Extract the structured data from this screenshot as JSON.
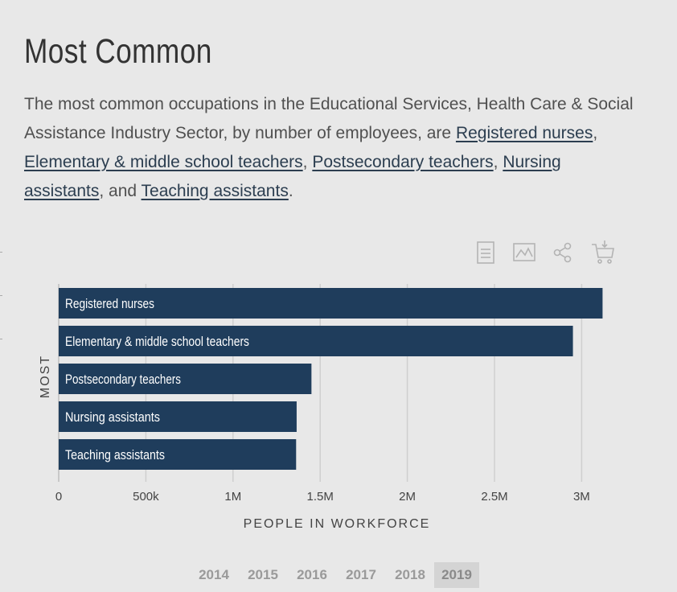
{
  "header": {
    "title": "Most Common",
    "desc_prefix": "The most common occupations in the Educational Services, Health Care & Social Assistance Industry Sector, by number of employees, are ",
    "links": [
      "Registered nurses",
      "Elementary & middle school teachers",
      "Postsecondary teachers",
      "Nursing assistants",
      "Teaching assistants"
    ],
    "sep1": ", ",
    "sep2": ", ",
    "sep3": ", ",
    "sep4": ", and ",
    "desc_suffix": "."
  },
  "toolbar": {
    "icons": [
      "document-icon",
      "image-icon",
      "share-icon",
      "cart-download-icon"
    ]
  },
  "chart_data": {
    "type": "bar",
    "orientation": "horizontal",
    "categories": [
      "Registered nurses",
      "Elementary & middle school teachers",
      "Postsecondary teachers",
      "Nursing assistants",
      "Teaching assistants"
    ],
    "values": [
      3120000,
      2950000,
      1450000,
      1365000,
      1362000
    ],
    "xlabel": "PEOPLE IN WORKFORCE",
    "ylabel": "MOST",
    "xlim": [
      0,
      3250000
    ],
    "xticks": [
      0,
      500000,
      1000000,
      1500000,
      2000000,
      2500000,
      3000000
    ],
    "xtick_labels": [
      "0",
      "500k",
      "1M",
      "1.5M",
      "2M",
      "2.5M",
      "3M"
    ],
    "grid": true,
    "bar_color": "#1f3d5c"
  },
  "years": {
    "items": [
      "2014",
      "2015",
      "2016",
      "2017",
      "2018",
      "2019"
    ],
    "selected": "2019"
  }
}
